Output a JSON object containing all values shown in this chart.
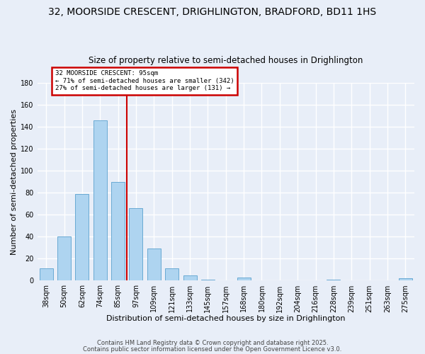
{
  "title": "32, MOORSIDE CRESCENT, DRIGHLINGTON, BRADFORD, BD11 1HS",
  "subtitle": "Size of property relative to semi-detached houses in Drighlington",
  "xlabel": "Distribution of semi-detached houses by size in Drighlington",
  "ylabel": "Number of semi-detached properties",
  "bin_labels": [
    "38sqm",
    "50sqm",
    "62sqm",
    "74sqm",
    "85sqm",
    "97sqm",
    "109sqm",
    "121sqm",
    "133sqm",
    "145sqm",
    "157sqm",
    "168sqm",
    "180sqm",
    "192sqm",
    "204sqm",
    "216sqm",
    "228sqm",
    "239sqm",
    "251sqm",
    "263sqm",
    "275sqm"
  ],
  "bar_values": [
    11,
    40,
    79,
    146,
    90,
    66,
    29,
    11,
    5,
    1,
    0,
    3,
    0,
    0,
    0,
    0,
    1,
    0,
    0,
    0,
    2
  ],
  "bar_color": "#aed4f0",
  "bar_edge_color": "#6aaad4",
  "vline_x_idx": 5,
  "vline_color": "#cc0000",
  "annotation_title": "32 MOORSIDE CRESCENT: 95sqm",
  "annotation_line1": "← 71% of semi-detached houses are smaller (342)",
  "annotation_line2": "27% of semi-detached houses are larger (131) →",
  "annotation_box_color": "#ffffff",
  "annotation_box_edge": "#cc0000",
  "ylim": [
    0,
    180
  ],
  "yticks": [
    0,
    20,
    40,
    60,
    80,
    100,
    120,
    140,
    160,
    180
  ],
  "footer1": "Contains HM Land Registry data © Crown copyright and database right 2025.",
  "footer2": "Contains public sector information licensed under the Open Government Licence v3.0.",
  "bg_color": "#e8eef8",
  "grid_color": "#ffffff",
  "title_fontsize": 10,
  "subtitle_fontsize": 8.5,
  "axis_label_fontsize": 8,
  "tick_fontsize": 7,
  "footer_fontsize": 6
}
